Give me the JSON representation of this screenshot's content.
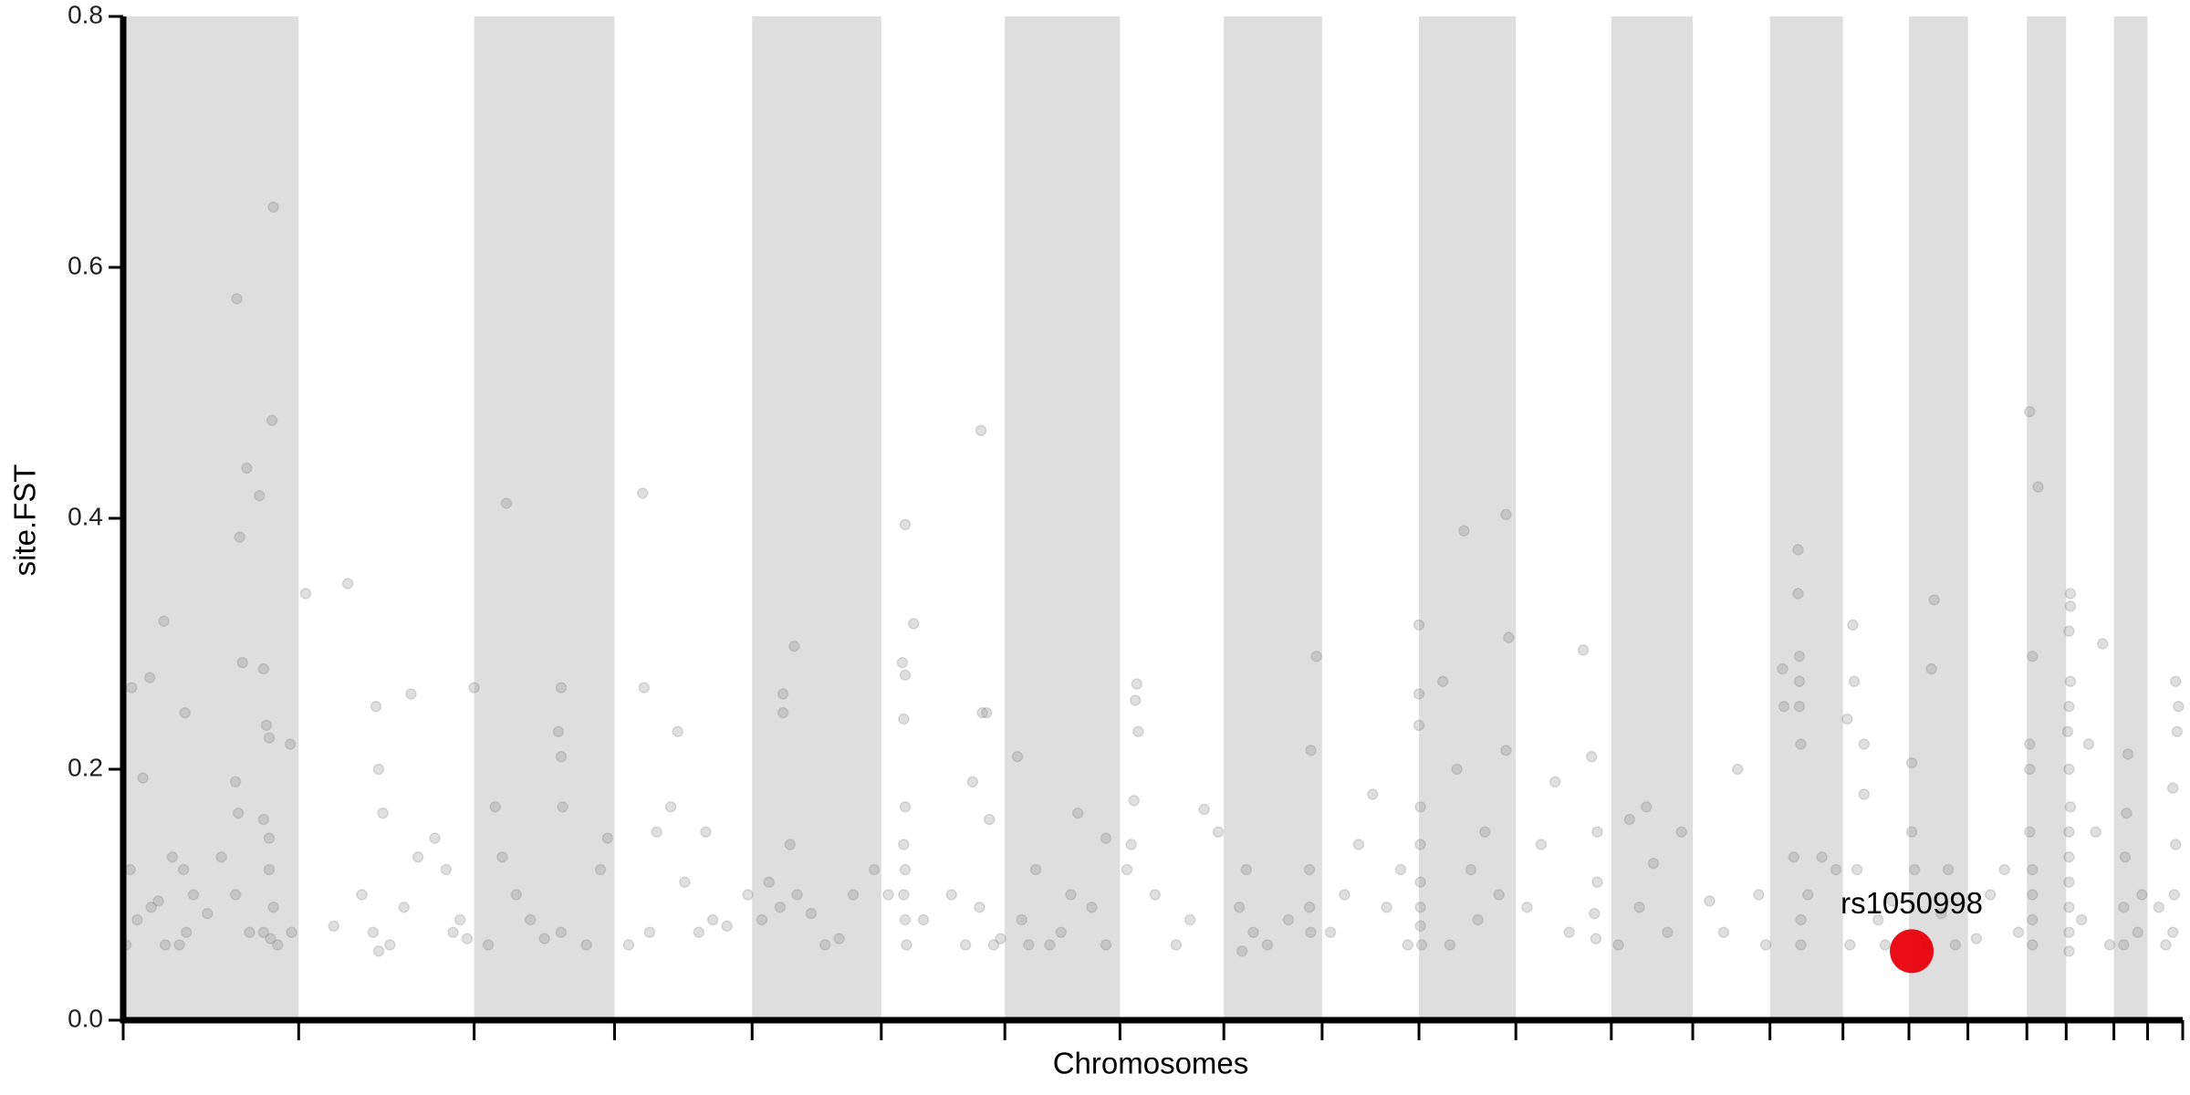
{
  "chart_data": {
    "type": "scatter",
    "x_label": "Chromosomes",
    "y_label": "site.FST",
    "xlim": [
      0,
      1467
    ],
    "ylim": [
      0,
      0.8
    ],
    "yticks": [
      {
        "value": 0,
        "label": "0.0"
      },
      0.2,
      0.4,
      0.6,
      0.8
    ],
    "chromosome_bounds": [
      0,
      125,
      250,
      350,
      448,
      540,
      628,
      710,
      784,
      854,
      923,
      992,
      1060,
      1118,
      1173,
      1225,
      1272,
      1314,
      1356,
      1384,
      1418,
      1442,
      1467
    ],
    "band_color": "#dedede",
    "point_color": "#808080",
    "point_opacity": 0.25,
    "x": [
      81,
      107,
      88,
      83,
      106,
      97,
      85,
      100,
      29,
      6,
      19,
      14,
      44,
      102,
      104,
      119,
      80,
      82,
      100,
      104,
      104,
      5,
      10,
      20,
      30,
      43,
      45,
      50,
      80,
      90,
      100,
      105,
      107,
      110,
      60,
      70,
      25,
      35,
      120,
      2,
      40,
      130,
      160,
      180,
      182,
      185,
      205,
      210,
      222,
      230,
      235,
      178,
      190,
      150,
      170,
      200,
      240,
      245,
      182,
      250,
      273,
      312,
      310,
      312,
      313,
      265,
      280,
      260,
      290,
      312,
      330,
      345,
      340,
      270,
      300,
      370,
      371,
      395,
      390,
      375,
      380,
      400,
      410,
      420,
      430,
      445,
      360,
      415,
      470,
      478,
      470,
      475,
      468,
      480,
      460,
      455,
      500,
      520,
      535,
      490,
      510,
      557,
      563,
      555,
      557,
      556,
      557,
      556,
      557,
      556,
      557,
      558,
      545,
      570,
      590,
      610,
      620,
      600,
      612,
      615,
      611,
      617,
      605,
      625,
      637,
      640,
      650,
      668,
      680,
      700,
      690,
      660,
      645,
      700,
      675,
      722,
      721,
      723,
      720,
      718,
      715,
      750,
      770,
      780,
      760,
      735,
      800,
      795,
      805,
      797,
      830,
      850,
      846,
      845,
      845,
      846,
      815,
      870,
      880,
      890,
      900,
      910,
      860,
      915,
      923,
      923,
      923,
      924,
      924,
      924,
      924,
      924,
      925,
      955,
      950,
      960,
      940,
      970,
      985,
      987,
      985,
      980,
      965,
      945,
      1010,
      1020,
      1040,
      1050,
      1046,
      1050,
      1048,
      1049,
      1030,
      1000,
      1090,
      1073,
      1080,
      1100,
      1110,
      1085,
      1065,
      1130,
      1150,
      1165,
      1140,
      1170,
      1193,
      1193,
      1194,
      1194,
      1194,
      1195,
      1190,
      1195,
      1195,
      1182,
      1183,
      1200,
      1210,
      1220,
      1232,
      1233,
      1228,
      1240,
      1240,
      1235,
      1250,
      1260,
      1255,
      1230,
      1274,
      1274,
      1276,
      1290,
      1288,
      1300,
      1295,
      1305,
      1285,
      1330,
      1340,
      1350,
      1320,
      1358,
      1364,
      1360,
      1358,
      1358,
      1358,
      1360,
      1360,
      1360,
      1360,
      1387,
      1387,
      1386,
      1387,
      1386,
      1385,
      1386,
      1387,
      1386,
      1386,
      1386,
      1386,
      1386,
      1386,
      1410,
      1400,
      1405,
      1395,
      1415,
      1428,
      1427,
      1426,
      1425,
      1425,
      1438,
      1435,
      1462,
      1464,
      1463,
      1460,
      1462,
      1461,
      1460,
      1450,
      1455
    ],
    "values": [
      0.575,
      0.648,
      0.44,
      0.385,
      0.478,
      0.418,
      0.285,
      0.28,
      0.318,
      0.265,
      0.273,
      0.193,
      0.245,
      0.235,
      0.225,
      0.22,
      0.19,
      0.165,
      0.16,
      0.145,
      0.12,
      0.12,
      0.08,
      0.09,
      0.06,
      0.12,
      0.07,
      0.1,
      0.1,
      0.07,
      0.07,
      0.065,
      0.09,
      0.06,
      0.085,
      0.13,
      0.095,
      0.13,
      0.07,
      0.06,
      0.06,
      0.34,
      0.348,
      0.25,
      0.2,
      0.165,
      0.26,
      0.13,
      0.145,
      0.12,
      0.07,
      0.07,
      0.06,
      0.075,
      0.1,
      0.09,
      0.08,
      0.065,
      0.055,
      0.265,
      0.412,
      0.265,
      0.23,
      0.21,
      0.17,
      0.17,
      0.1,
      0.06,
      0.08,
      0.07,
      0.06,
      0.145,
      0.12,
      0.13,
      0.065,
      0.42,
      0.265,
      0.23,
      0.17,
      0.07,
      0.15,
      0.11,
      0.07,
      0.08,
      0.075,
      0.1,
      0.06,
      0.15,
      0.26,
      0.298,
      0.245,
      0.14,
      0.09,
      0.1,
      0.11,
      0.08,
      0.06,
      0.1,
      0.12,
      0.085,
      0.065,
      0.395,
      0.316,
      0.285,
      0.275,
      0.24,
      0.17,
      0.14,
      0.12,
      0.1,
      0.08,
      0.06,
      0.1,
      0.08,
      0.1,
      0.09,
      0.06,
      0.06,
      0.245,
      0.245,
      0.47,
      0.16,
      0.19,
      0.065,
      0.21,
      0.08,
      0.12,
      0.07,
      0.165,
      0.145,
      0.09,
      0.06,
      0.06,
      0.06,
      0.1,
      0.268,
      0.255,
      0.23,
      0.175,
      0.14,
      0.12,
      0.06,
      0.168,
      0.15,
      0.08,
      0.1,
      0.12,
      0.09,
      0.07,
      0.055,
      0.08,
      0.29,
      0.215,
      0.12,
      0.09,
      0.07,
      0.06,
      0.1,
      0.14,
      0.18,
      0.09,
      0.12,
      0.07,
      0.06,
      0.315,
      0.26,
      0.235,
      0.17,
      0.14,
      0.11,
      0.09,
      0.075,
      0.06,
      0.39,
      0.2,
      0.12,
      0.27,
      0.15,
      0.403,
      0.305,
      0.215,
      0.1,
      0.08,
      0.06,
      0.14,
      0.19,
      0.295,
      0.11,
      0.21,
      0.15,
      0.085,
      0.065,
      0.07,
      0.09,
      0.125,
      0.16,
      0.09,
      0.07,
      0.15,
      0.17,
      0.06,
      0.095,
      0.2,
      0.1,
      0.07,
      0.06,
      0.375,
      0.34,
      0.29,
      0.27,
      0.25,
      0.22,
      0.13,
      0.08,
      0.06,
      0.28,
      0.25,
      0.1,
      0.13,
      0.12,
      0.315,
      0.27,
      0.24,
      0.22,
      0.18,
      0.12,
      0.08,
      0.095,
      0.06,
      0.06,
      0.205,
      0.15,
      0.12,
      0.335,
      0.28,
      0.12,
      0.085,
      0.06,
      0.06,
      0.1,
      0.12,
      0.07,
      0.065,
      0.485,
      0.425,
      0.29,
      0.22,
      0.2,
      0.15,
      0.12,
      0.1,
      0.08,
      0.06,
      0.34,
      0.33,
      0.31,
      0.27,
      0.25,
      0.23,
      0.2,
      0.17,
      0.15,
      0.13,
      0.11,
      0.09,
      0.07,
      0.055,
      0.3,
      0.22,
      0.15,
      0.08,
      0.06,
      0.212,
      0.165,
      0.13,
      0.09,
      0.06,
      0.1,
      0.07,
      0.27,
      0.25,
      0.23,
      0.185,
      0.14,
      0.1,
      0.07,
      0.09,
      0.06
    ],
    "highlight": {
      "label": "rs1050998",
      "x": 1274,
      "value": 0.055,
      "color": "#e8000b"
    }
  }
}
